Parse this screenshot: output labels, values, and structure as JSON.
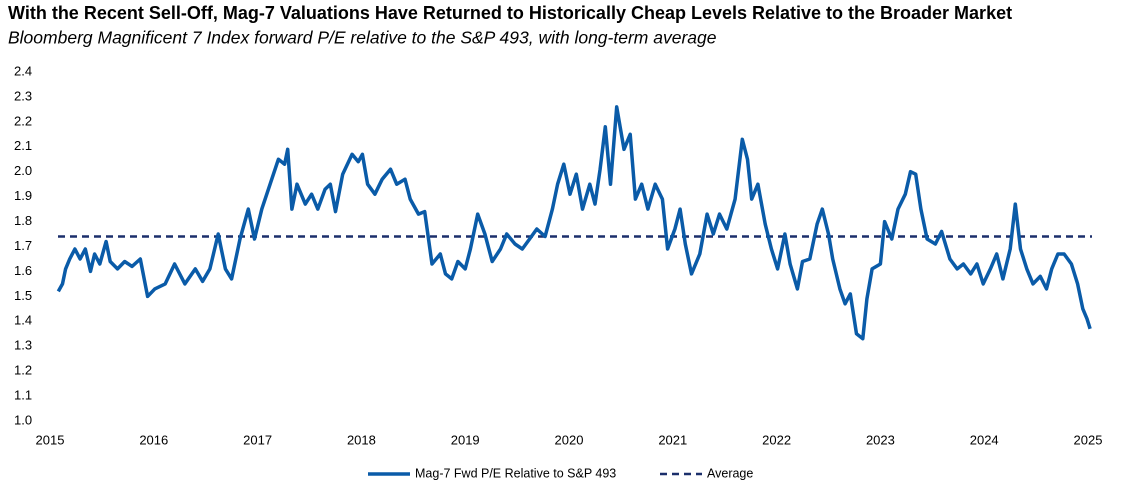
{
  "chart_data": {
    "type": "line",
    "title": "With the Recent Sell-Off, Mag-7 Valuations Have Returned to Historically Cheap Levels Relative to the Broader Market",
    "subtitle": "Bloomberg Magnificent 7 Index forward P/E relative to the S&P 493, with long-term average",
    "x": [
      2015.08,
      2015.12,
      2015.15,
      2015.19,
      2015.24,
      2015.29,
      2015.34,
      2015.39,
      2015.43,
      2015.48,
      2015.54,
      2015.58,
      2015.65,
      2015.72,
      2015.79,
      2015.87,
      2015.94,
      2016.01,
      2016.11,
      2016.2,
      2016.3,
      2016.4,
      2016.47,
      2016.54,
      2016.62,
      2016.69,
      2016.75,
      2016.83,
      2016.91,
      2016.97,
      2017.04,
      2017.12,
      2017.2,
      2017.26,
      2017.29,
      2017.33,
      2017.38,
      2017.46,
      2017.52,
      2017.58,
      2017.65,
      2017.7,
      2017.75,
      2017.82,
      2017.91,
      2017.97,
      2018.01,
      2018.06,
      2018.13,
      2018.2,
      2018.28,
      2018.34,
      2018.42,
      2018.47,
      2018.55,
      2018.61,
      2018.68,
      2018.76,
      2018.81,
      2018.87,
      2018.93,
      2019.0,
      2019.05,
      2019.12,
      2019.19,
      2019.26,
      2019.34,
      2019.4,
      2019.48,
      2019.55,
      2019.62,
      2019.69,
      2019.77,
      2019.84,
      2019.89,
      2019.95,
      2020.01,
      2020.07,
      2020.13,
      2020.2,
      2020.25,
      2020.3,
      2020.35,
      2020.4,
      2020.46,
      2020.53,
      2020.59,
      2020.64,
      2020.7,
      2020.76,
      2020.83,
      2020.9,
      2020.95,
      2021.02,
      2021.07,
      2021.12,
      2021.18,
      2021.26,
      2021.33,
      2021.39,
      2021.45,
      2021.52,
      2021.6,
      2021.67,
      2021.72,
      2021.76,
      2021.82,
      2021.89,
      2021.95,
      2022.01,
      2022.08,
      2022.13,
      2022.2,
      2022.25,
      2022.32,
      2022.39,
      2022.44,
      2022.5,
      2022.54,
      2022.61,
      2022.66,
      2022.71,
      2022.77,
      2022.83,
      2022.87,
      2022.92,
      2023.0,
      2023.04,
      2023.11,
      2023.17,
      2023.24,
      2023.29,
      2023.34,
      2023.39,
      2023.45,
      2023.53,
      2023.59,
      2023.67,
      2023.74,
      2023.8,
      2023.87,
      2023.93,
      2023.99,
      2024.06,
      2024.12,
      2024.18,
      2024.25,
      2024.3,
      2024.35,
      2024.41,
      2024.47,
      2024.54,
      2024.6,
      2024.65,
      2024.71,
      2024.77,
      2024.84,
      2024.9,
      2024.95,
      2024.99,
      2025.02
    ],
    "series": [
      {
        "name": "Mag-7 Fwd P/E Relative to S&P 493",
        "color": "#0a5ba8",
        "values": [
          1.52,
          1.55,
          1.61,
          1.65,
          1.69,
          1.65,
          1.69,
          1.6,
          1.67,
          1.63,
          1.72,
          1.64,
          1.61,
          1.64,
          1.62,
          1.65,
          1.5,
          1.53,
          1.55,
          1.63,
          1.55,
          1.61,
          1.56,
          1.61,
          1.75,
          1.61,
          1.57,
          1.73,
          1.85,
          1.73,
          1.85,
          1.95,
          2.05,
          2.03,
          2.09,
          1.85,
          1.95,
          1.87,
          1.91,
          1.85,
          1.93,
          1.95,
          1.84,
          1.99,
          2.07,
          2.04,
          2.07,
          1.95,
          1.91,
          1.97,
          2.01,
          1.95,
          1.97,
          1.89,
          1.83,
          1.84,
          1.63,
          1.67,
          1.59,
          1.57,
          1.64,
          1.61,
          1.69,
          1.83,
          1.75,
          1.64,
          1.69,
          1.75,
          1.71,
          1.69,
          1.73,
          1.77,
          1.74,
          1.85,
          1.95,
          2.03,
          1.91,
          1.99,
          1.85,
          1.95,
          1.87,
          2.01,
          2.18,
          1.95,
          2.26,
          2.09,
          2.15,
          1.89,
          1.95,
          1.85,
          1.95,
          1.89,
          1.69,
          1.77,
          1.85,
          1.71,
          1.59,
          1.67,
          1.83,
          1.75,
          1.83,
          1.77,
          1.89,
          2.13,
          2.05,
          1.89,
          1.95,
          1.79,
          1.69,
          1.61,
          1.75,
          1.63,
          1.53,
          1.64,
          1.65,
          1.79,
          1.85,
          1.75,
          1.65,
          1.53,
          1.47,
          1.51,
          1.35,
          1.33,
          1.49,
          1.61,
          1.63,
          1.8,
          1.73,
          1.85,
          1.91,
          2.0,
          1.99,
          1.85,
          1.73,
          1.71,
          1.76,
          1.65,
          1.61,
          1.63,
          1.59,
          1.63,
          1.55,
          1.61,
          1.67,
          1.57,
          1.69,
          1.87,
          1.69,
          1.61,
          1.55,
          1.58,
          1.53,
          1.61,
          1.67,
          1.67,
          1.63,
          1.55,
          1.45,
          1.41,
          1.37
        ]
      }
    ],
    "reference_line": {
      "name": "Average",
      "value": 1.74,
      "color": "#1b2f6b"
    },
    "xlim": [
      2015,
      2025
    ],
    "xticks": [
      2015,
      2016,
      2017,
      2018,
      2019,
      2020,
      2021,
      2022,
      2023,
      2024,
      2025
    ],
    "ylim": [
      1,
      2.4
    ],
    "yticks": [
      {
        "value": 1,
        "label": "1.0"
      },
      1.1,
      1.2,
      1.3,
      1.4,
      1.5,
      1.6,
      1.7,
      1.8,
      1.9,
      {
        "value": 2,
        "label": "2.0"
      },
      2.1,
      2.2,
      2.3,
      2.4
    ],
    "grid": false,
    "legend": "bottom"
  }
}
